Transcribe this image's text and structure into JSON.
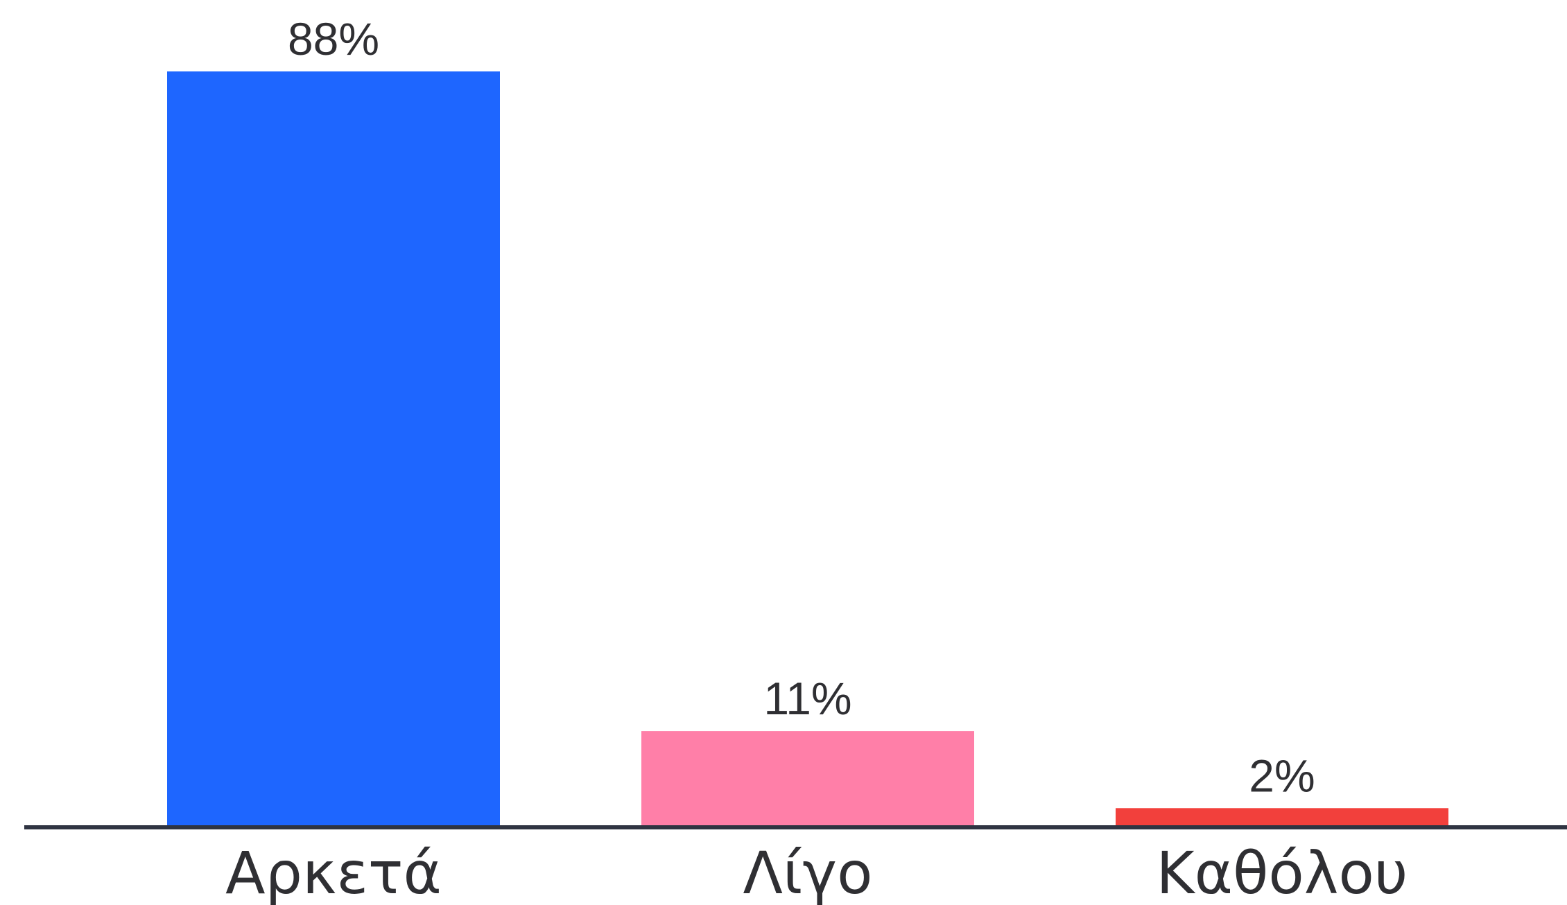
{
  "chart_data": {
    "type": "bar",
    "categories": [
      "Αρκετά",
      "Λίγο",
      "Καθόλου"
    ],
    "values": [
      88,
      11,
      2
    ],
    "value_labels": [
      "88%",
      "11%",
      "2%"
    ],
    "unit": "%",
    "ylim": [
      0,
      88
    ],
    "grid": false,
    "legend": "none",
    "colors": [
      "#1e66ff",
      "#ff7fa8",
      "#f2403c"
    ],
    "axis_color": "#2f3442"
  }
}
